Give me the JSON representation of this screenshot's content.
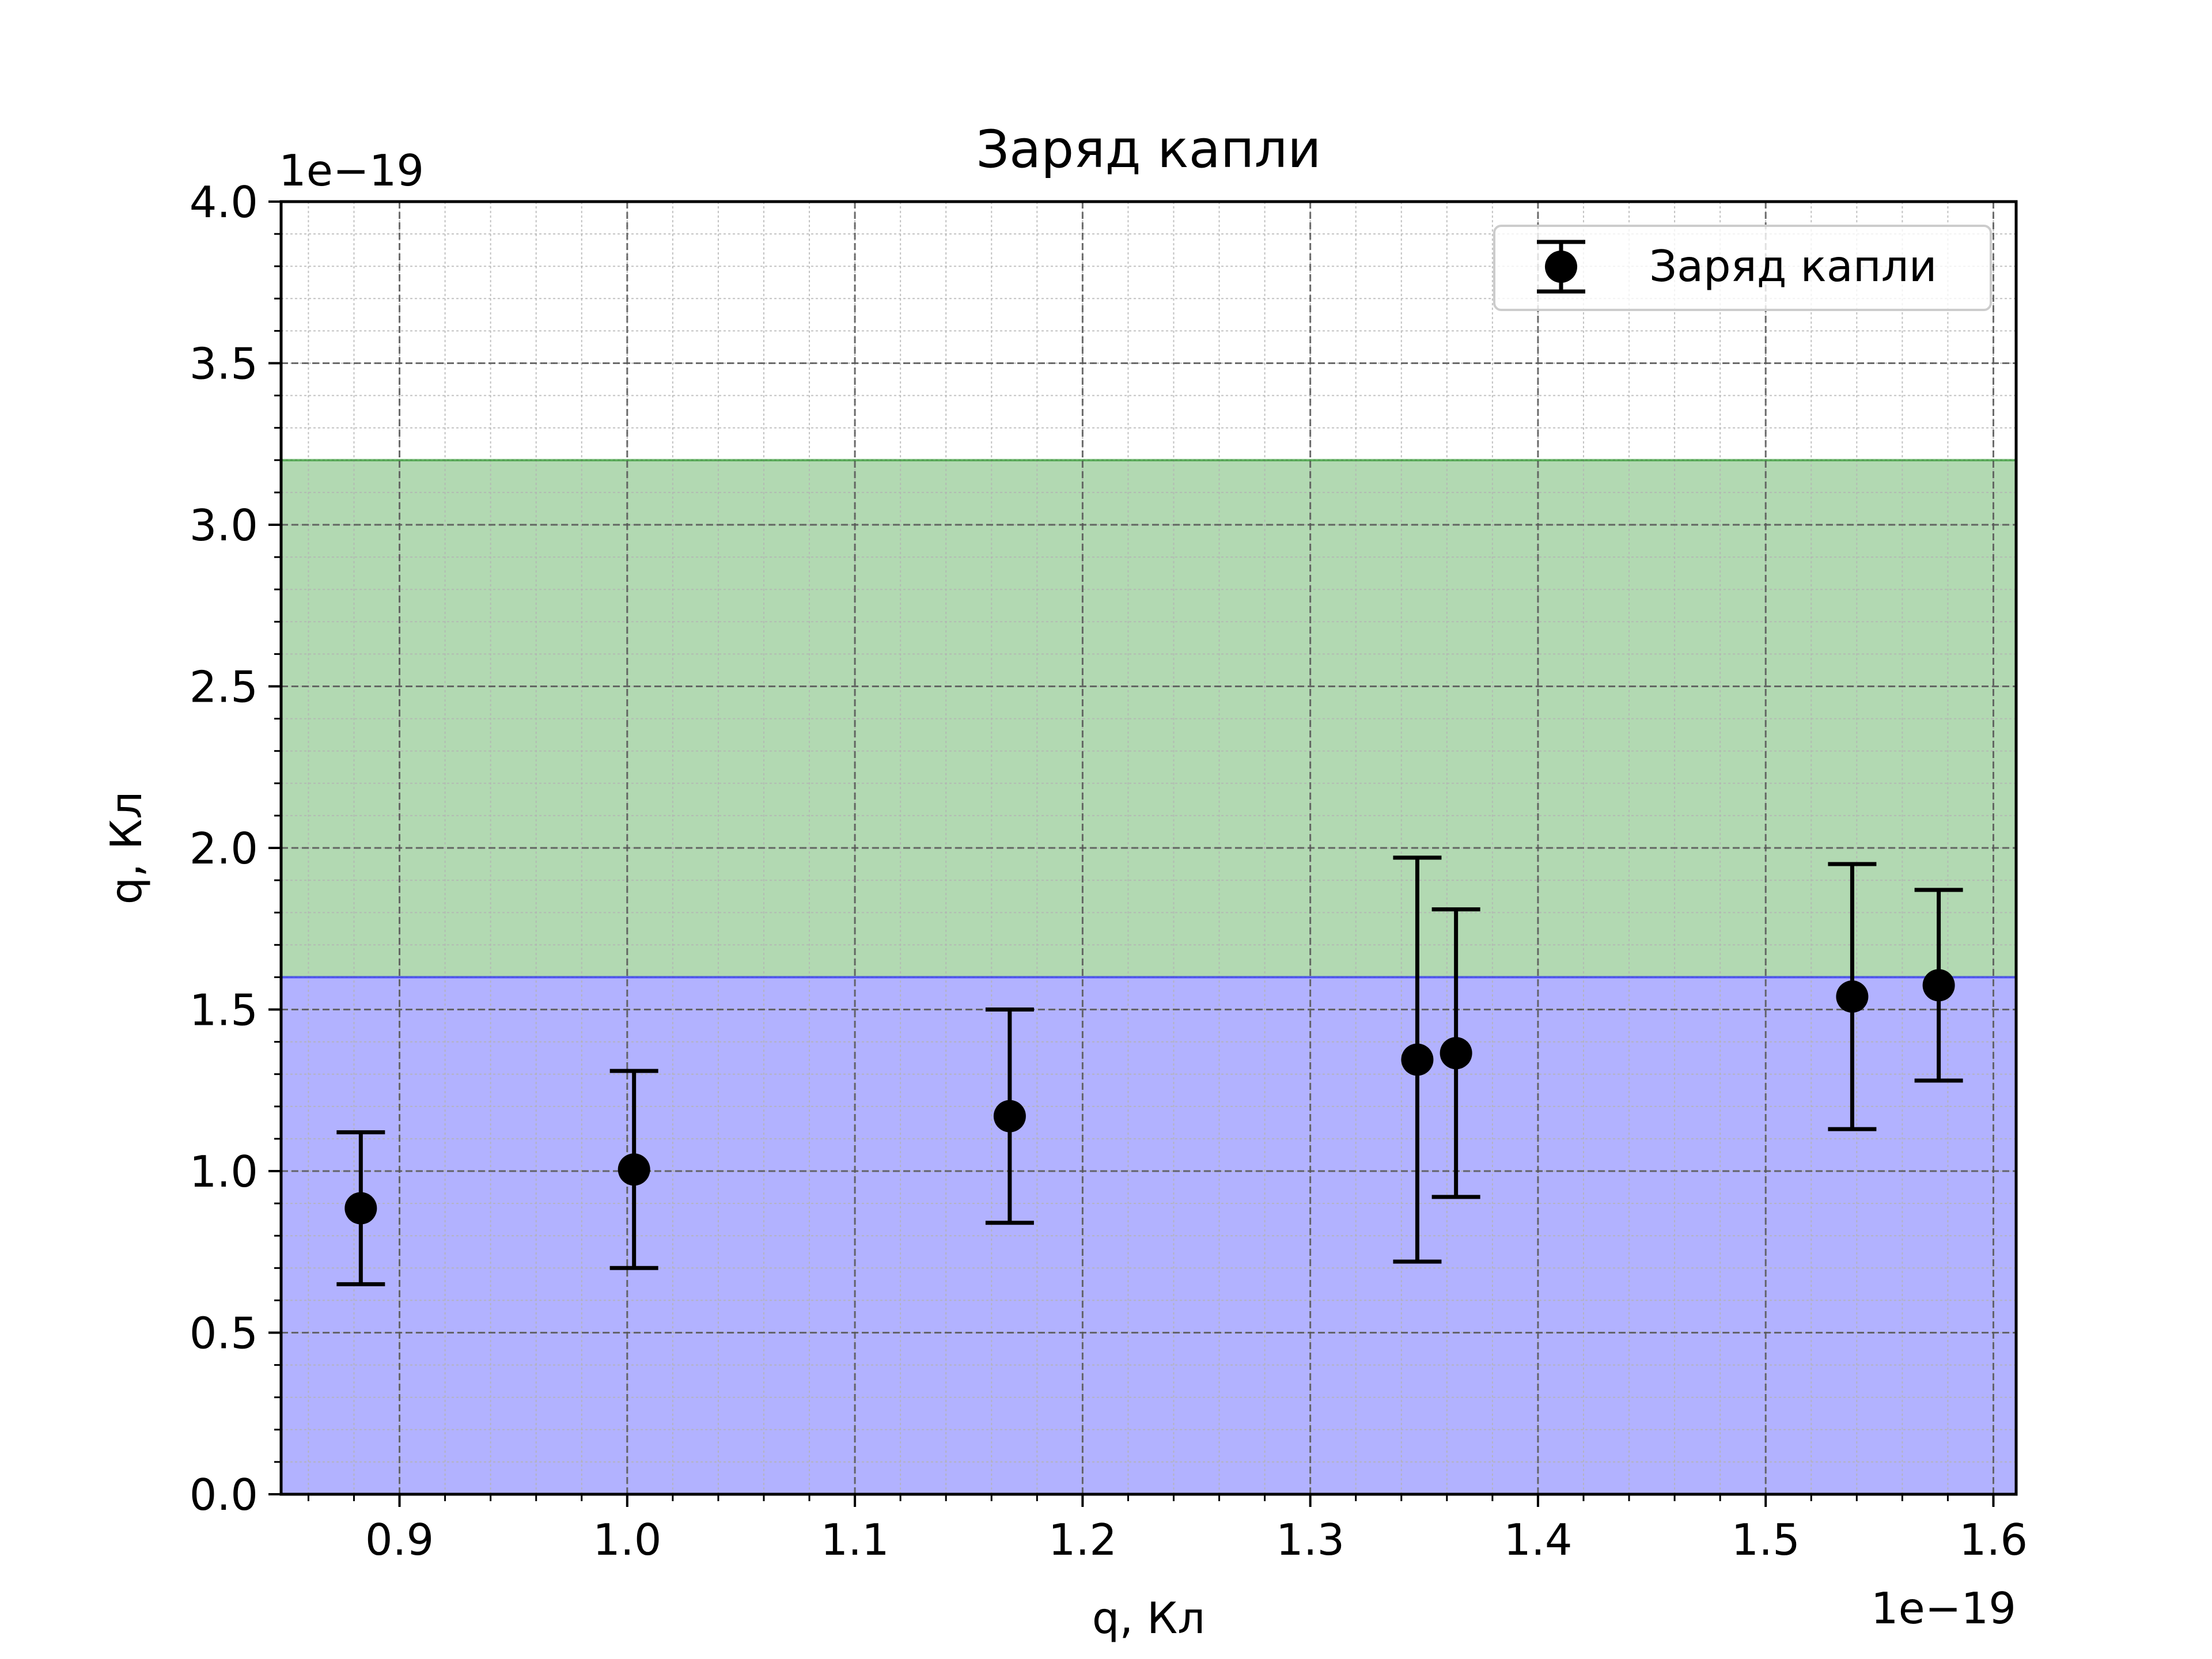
{
  "chart_data": {
    "type": "scatter",
    "title": "Заряд капли",
    "xlabel": "q, Кл",
    "ylabel": "q, Кл",
    "x_offset_label": "1e−19",
    "y_offset_label": "1e−19",
    "xlim": [
      0.848,
      1.61
    ],
    "ylim": [
      0.0,
      4.0
    ],
    "x_ticks": [
      0.9,
      1.0,
      1.1,
      1.2,
      1.3,
      1.4,
      1.5,
      1.6
    ],
    "x_tick_labels": [
      "0.9",
      "1.0",
      "1.1",
      "1.2",
      "1.3",
      "1.4",
      "1.5",
      "1.6"
    ],
    "y_ticks": [
      0.0,
      0.5,
      1.0,
      1.5,
      2.0,
      2.5,
      3.0,
      3.5,
      4.0
    ],
    "y_tick_labels": [
      "0.0",
      "0.5",
      "1.0",
      "1.5",
      "2.0",
      "2.5",
      "3.0",
      "3.5",
      "4.0"
    ],
    "grid": {
      "major": true,
      "minor": true
    },
    "bands": [
      {
        "y0": 0.0,
        "y1": 1.6,
        "color": "#0000ff",
        "opacity": 0.3
      },
      {
        "y0": 1.6,
        "y1": 3.2,
        "color": "#008000",
        "opacity": 0.3
      }
    ],
    "series": [
      {
        "name": "Заряд капли",
        "color": "#000000",
        "points": [
          {
            "x": 0.883,
            "y": 0.885,
            "ylow": 0.65,
            "yhigh": 1.12
          },
          {
            "x": 1.003,
            "y": 1.005,
            "ylow": 0.7,
            "yhigh": 1.31
          },
          {
            "x": 1.168,
            "y": 1.17,
            "ylow": 0.84,
            "yhigh": 1.5
          },
          {
            "x": 1.347,
            "y": 1.345,
            "ylow": 0.72,
            "yhigh": 1.97
          },
          {
            "x": 1.364,
            "y": 1.365,
            "ylow": 0.92,
            "yhigh": 1.81
          },
          {
            "x": 1.538,
            "y": 1.54,
            "ylow": 1.13,
            "yhigh": 1.95
          },
          {
            "x": 1.576,
            "y": 1.575,
            "ylow": 1.28,
            "yhigh": 1.87
          }
        ]
      }
    ],
    "legend": {
      "position": "top-right",
      "label": "Заряд капли"
    }
  }
}
